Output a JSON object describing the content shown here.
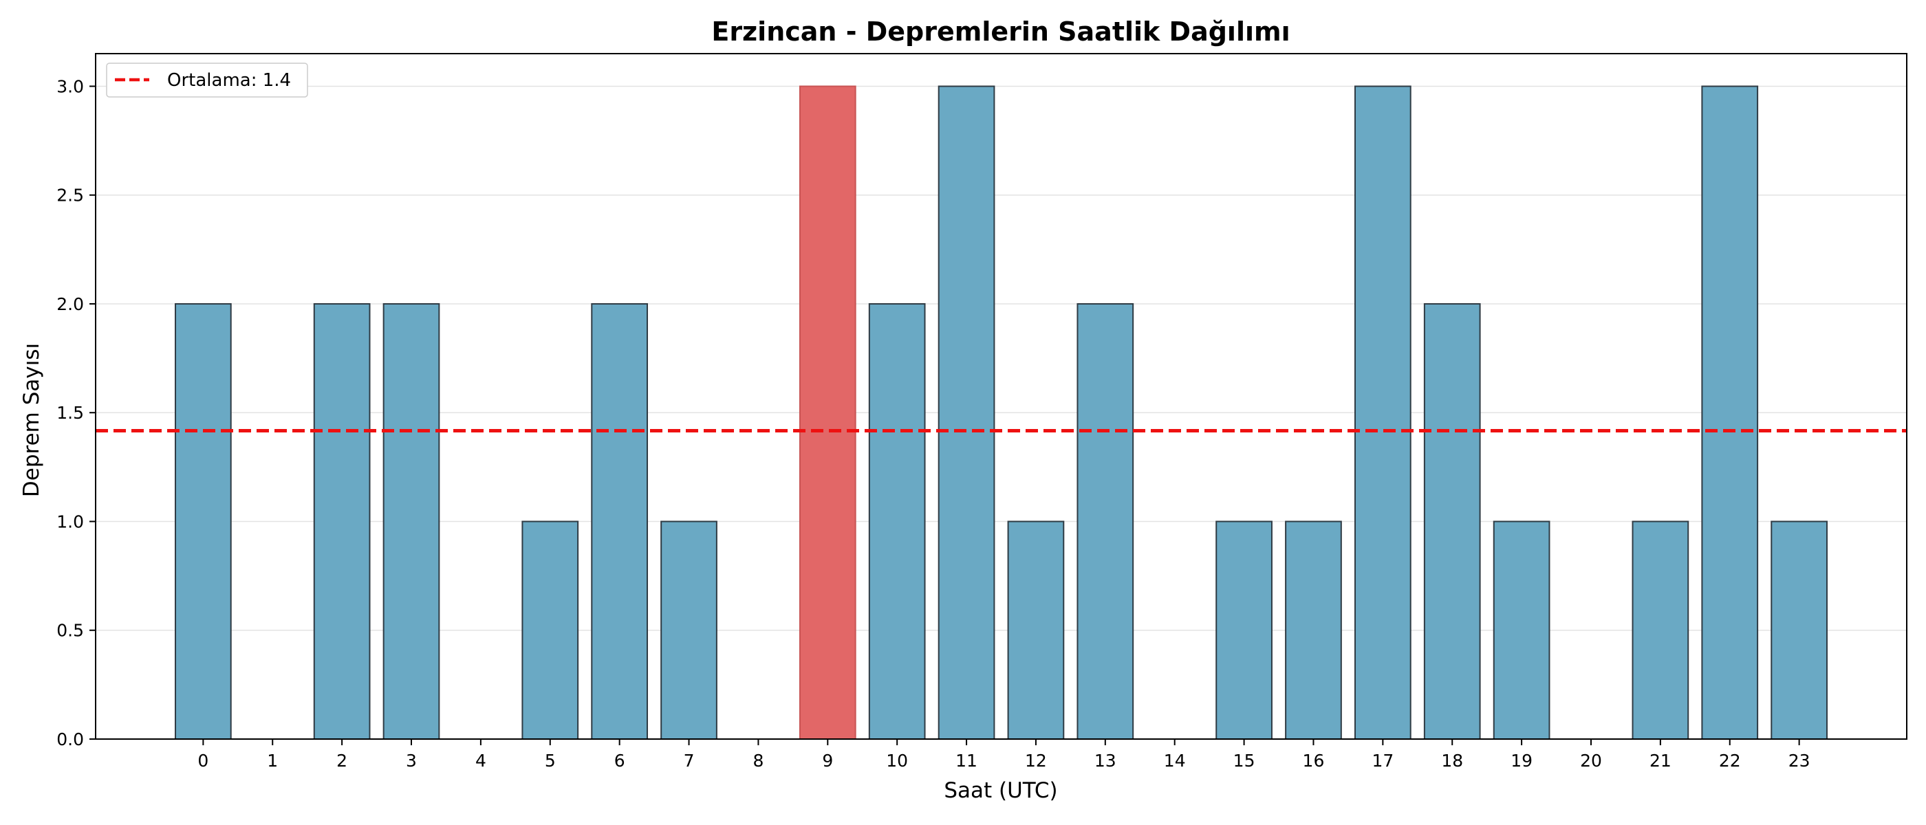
{
  "chart_data": {
    "type": "bar",
    "title": "Erzincan - Depremlerin Saatlik Dağılımı",
    "xlabel": "Saat (UTC)",
    "ylabel": "Deprem Sayısı",
    "categories": [
      "0",
      "1",
      "2",
      "3",
      "4",
      "5",
      "6",
      "7",
      "8",
      "9",
      "10",
      "11",
      "12",
      "13",
      "14",
      "15",
      "16",
      "17",
      "18",
      "19",
      "20",
      "21",
      "22",
      "23"
    ],
    "values": [
      2,
      0,
      2,
      2,
      0,
      1,
      2,
      1,
      0,
      3,
      2,
      3,
      1,
      2,
      0,
      1,
      1,
      3,
      2,
      1,
      0,
      1,
      3,
      1
    ],
    "highlight_category": "9",
    "ylim": [
      0,
      3.15
    ],
    "yticks": [
      "0.0",
      "0.5",
      "1.0",
      "1.5",
      "2.0",
      "2.5",
      "3.0"
    ],
    "mean_line": {
      "label": "Ortalama: 1.4",
      "value": 1.417
    },
    "grid": "y",
    "legend_position": "top-left",
    "colors": {
      "bar": "#6aa9c4",
      "bar_highlight": "#e26767",
      "bar_edge": "#2f3b44",
      "mean_line": "#ee1111",
      "grid": "#e3e3e3"
    }
  }
}
